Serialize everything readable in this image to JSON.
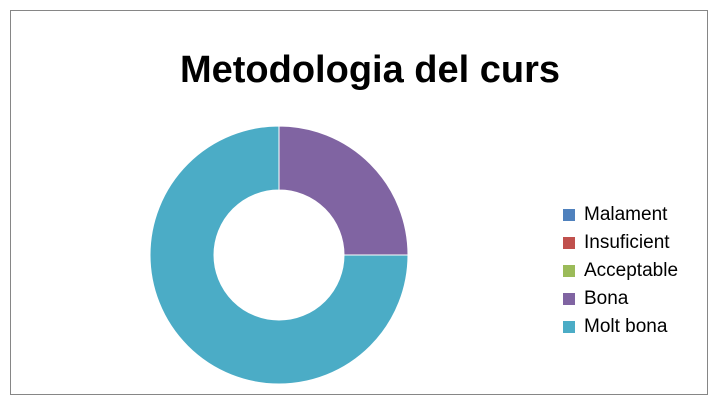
{
  "chart_data": {
    "type": "pie",
    "title": "Metodologia del curs",
    "categories": [
      "Malament",
      "Insuficient",
      "Acceptable",
      "Bona",
      "Molt bona"
    ],
    "values": [
      0,
      0,
      0,
      25,
      75
    ],
    "colors": [
      "#4f81bd",
      "#c0504d",
      "#9bbb59",
      "#8064a2",
      "#4bacc6"
    ],
    "donut": true,
    "legend": "right"
  }
}
